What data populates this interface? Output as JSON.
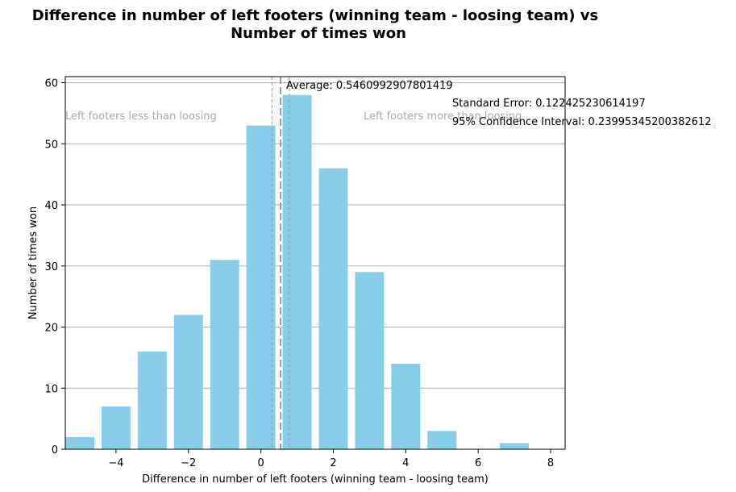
{
  "chart_data": {
    "type": "bar",
    "title_line1": "Difference in number of left footers (winning team - loosing team) vs",
    "title_line2": "Number of times won",
    "xlabel": "Difference in number of left footers (winning team - loosing team)",
    "ylabel": "Number of times won",
    "x": [
      -5,
      -4,
      -3,
      -2,
      -1,
      0,
      1,
      2,
      3,
      4,
      5,
      6,
      7
    ],
    "values": [
      2,
      7,
      16,
      22,
      31,
      53,
      58,
      46,
      29,
      14,
      3,
      0,
      1
    ],
    "xlim": [
      -5.4,
      8.4
    ],
    "ylim": [
      0,
      61
    ],
    "xticks": [
      -4,
      -2,
      0,
      2,
      4,
      6,
      8
    ],
    "xtick_labels": [
      "−4",
      "−2",
      "0",
      "2",
      "4",
      "6",
      "8"
    ],
    "yticks": [
      0,
      10,
      20,
      30,
      40,
      50,
      60
    ],
    "ytick_labels": [
      "0",
      "10",
      "20",
      "30",
      "40",
      "50",
      "60"
    ],
    "grid": "y",
    "bar_color": "#87ceeb",
    "average": 0.5460992907801419,
    "confidence_lower": 0.3061458387763158,
    "confidence_upper": 0.785052742783968,
    "annotations": {
      "average": "Average: 0.5460992907801419",
      "standard_error": "Standard Error: 0.122425230614197",
      "confidence_interval": "95% Confidence Interval: 0.23995345200382612",
      "left_region": "Left footers less than loosing",
      "right_region": "Left footers more than loosing"
    }
  }
}
